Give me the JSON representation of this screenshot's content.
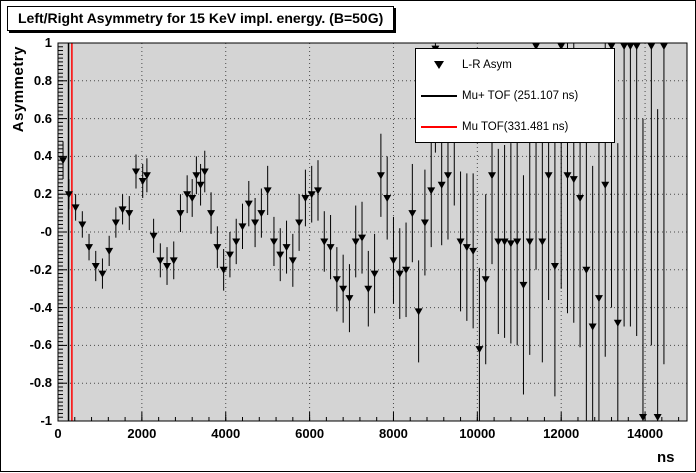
{
  "colors": {
    "page_bg": "#ffffff",
    "plot_bg": "#d4d4d4",
    "grid": "#4a4a4a",
    "frame": "#000000",
    "marker": "#000000",
    "mu_plus_tof_line": "#000000",
    "mu_tof_line": "#ff0000"
  },
  "chart_data": {
    "type": "scatter",
    "title": "Left/Right Asymmetry for 15 KeV impl. energy. (B=50G)",
    "xlabel": "ns",
    "ylabel": "Asymmetry",
    "xlim": [
      0,
      15000
    ],
    "ylim": [
      -1,
      1
    ],
    "grid": true,
    "x_ticks": {
      "values": [
        0,
        2000,
        4000,
        6000,
        8000,
        10000,
        12000,
        14000
      ],
      "labels": [
        "0",
        "2000",
        "4000",
        "6000",
        "8000",
        "10000",
        "12000",
        "14000"
      ],
      "minor_step": 400
    },
    "y_ticks": {
      "values": [
        1,
        0.8,
        0.6,
        0.4,
        0.2,
        0,
        -0.2,
        -0.4,
        -0.6,
        -0.8,
        -1
      ],
      "labels": [
        "1",
        "0.8",
        "0.6",
        "0.4",
        "0.2",
        "-0",
        "-0.2",
        "-0.4",
        "-0.6",
        "-0.8",
        "-1"
      ],
      "minor_step": 0.02
    },
    "legend": {
      "position": "top-right",
      "entries": [
        {
          "label": "L-R Asym",
          "marker": "triangle-down",
          "color": "#000000"
        },
        {
          "label": "Mu+ TOF (251.107 ns)",
          "marker": "line",
          "color": "#000000"
        },
        {
          "label": "Mu TOF(331.481 ns)",
          "marker": "line",
          "color": "#ff0000"
        }
      ]
    },
    "vlines": [
      {
        "name": "mu-plus-tof",
        "x": 251.107,
        "color": "#000000"
      },
      {
        "name": "mu-tof",
        "x": 331.481,
        "color": "#ff0000"
      }
    ],
    "series": [
      {
        "name": "L-R Asym",
        "marker": "triangle-down",
        "color": "#000000",
        "points": [
          [
            120,
            0.38,
            0.1
          ],
          [
            260,
            0.2,
            0.08
          ],
          [
            420,
            0.13,
            0.07
          ],
          [
            580,
            0.04,
            0.07
          ],
          [
            740,
            -0.08,
            0.07
          ],
          [
            900,
            -0.18,
            0.08
          ],
          [
            1060,
            -0.22,
            0.08
          ],
          [
            1220,
            -0.1,
            0.08
          ],
          [
            1380,
            0.05,
            0.08
          ],
          [
            1540,
            0.12,
            0.08
          ],
          [
            1700,
            0.1,
            0.09
          ],
          [
            1860,
            0.32,
            0.09
          ],
          [
            2020,
            0.27,
            0.09
          ],
          [
            2120,
            0.3,
            0.09
          ],
          [
            2280,
            -0.02,
            0.09
          ],
          [
            2440,
            -0.15,
            0.09
          ],
          [
            2600,
            -0.18,
            0.1
          ],
          [
            2760,
            -0.15,
            0.1
          ],
          [
            2920,
            0.1,
            0.1
          ],
          [
            3080,
            0.2,
            0.1
          ],
          [
            3200,
            0.18,
            0.1
          ],
          [
            3300,
            0.3,
            0.1
          ],
          [
            3400,
            0.25,
            0.11
          ],
          [
            3500,
            0.32,
            0.11
          ],
          [
            3650,
            0.1,
            0.11
          ],
          [
            3800,
            -0.08,
            0.11
          ],
          [
            3950,
            -0.2,
            0.11
          ],
          [
            4100,
            -0.12,
            0.12
          ],
          [
            4250,
            -0.05,
            0.12
          ],
          [
            4400,
            0.03,
            0.12
          ],
          [
            4550,
            0.15,
            0.12
          ],
          [
            4700,
            0.05,
            0.13
          ],
          [
            4850,
            0.1,
            0.13
          ],
          [
            5000,
            0.22,
            0.13
          ],
          [
            5150,
            -0.05,
            0.13
          ],
          [
            5300,
            -0.12,
            0.14
          ],
          [
            5450,
            -0.08,
            0.14
          ],
          [
            5600,
            -0.15,
            0.14
          ],
          [
            5750,
            0.05,
            0.15
          ],
          [
            5900,
            0.18,
            0.15
          ],
          [
            6050,
            0.2,
            0.15
          ],
          [
            6200,
            0.22,
            0.16
          ],
          [
            6350,
            -0.05,
            0.16
          ],
          [
            6500,
            -0.08,
            0.17
          ],
          [
            6650,
            -0.25,
            0.17
          ],
          [
            6800,
            -0.3,
            0.18
          ],
          [
            6950,
            -0.35,
            0.18
          ],
          [
            7100,
            -0.05,
            0.19
          ],
          [
            7250,
            -0.03,
            0.19
          ],
          [
            7400,
            -0.3,
            0.2
          ],
          [
            7550,
            -0.22,
            0.21
          ],
          [
            7700,
            0.3,
            0.22
          ],
          [
            7850,
            0.18,
            0.22
          ],
          [
            8000,
            -0.15,
            0.23
          ],
          [
            8150,
            -0.22,
            0.24
          ],
          [
            8300,
            -0.2,
            0.25
          ],
          [
            8450,
            0.1,
            0.26
          ],
          [
            8600,
            -0.42,
            0.27
          ],
          [
            8750,
            0.05,
            0.28
          ],
          [
            8900,
            0.22,
            0.3
          ],
          [
            9000,
            0.97,
            0.55
          ],
          [
            9150,
            0.25,
            0.32
          ],
          [
            9300,
            0.3,
            0.34
          ],
          [
            9450,
            0.5,
            0.36
          ],
          [
            9600,
            -0.05,
            0.37
          ],
          [
            9750,
            -0.08,
            0.39
          ],
          [
            9900,
            -0.1,
            0.41
          ],
          [
            10050,
            -0.62,
            0.43
          ],
          [
            10200,
            -0.25,
            0.45
          ],
          [
            10350,
            0.3,
            0.47
          ],
          [
            10500,
            -0.05,
            0.49
          ],
          [
            10650,
            -0.05,
            0.51
          ],
          [
            10800,
            -0.06,
            0.53
          ],
          [
            10950,
            -0.05,
            0.55
          ],
          [
            11100,
            -0.28,
            0.58
          ],
          [
            11250,
            -0.05,
            0.6
          ],
          [
            11400,
            1.0,
            1.2
          ],
          [
            11550,
            -0.05,
            0.64
          ],
          [
            11700,
            0.3,
            0.66
          ],
          [
            11850,
            -0.18,
            0.69
          ],
          [
            12000,
            1.0,
            1.3
          ],
          [
            12150,
            0.3,
            0.73
          ],
          [
            12300,
            0.28,
            0.76
          ],
          [
            12450,
            0.18,
            0.79
          ],
          [
            12600,
            -0.2,
            0.82
          ],
          [
            12750,
            -0.5,
            0.85
          ],
          [
            12900,
            -0.35,
            0.88
          ],
          [
            13050,
            0.25,
            0.91
          ],
          [
            13200,
            1.0,
            1.4
          ],
          [
            13350,
            -0.48,
            0.95
          ],
          [
            13500,
            1.0,
            1.5
          ],
          [
            13650,
            1.0,
            1.5
          ],
          [
            13800,
            1.0,
            1.55
          ],
          [
            13950,
            -1.0,
            1.6
          ],
          [
            14150,
            1.0,
            1.6
          ],
          [
            14300,
            -1.0,
            1.65
          ],
          [
            14450,
            1.0,
            1.7
          ]
        ]
      }
    ]
  }
}
